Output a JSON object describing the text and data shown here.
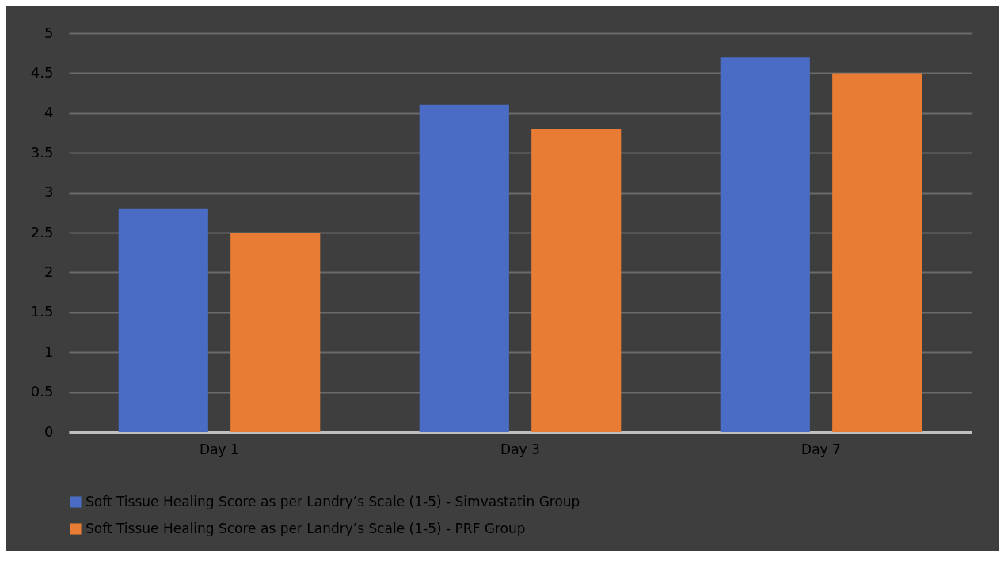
{
  "chart_data": {
    "type": "bar",
    "categories": [
      "Day 1",
      "Day 3",
      "Day 7"
    ],
    "series": [
      {
        "name": "Soft Tissue Healing Score as per Landry’s Scale (1-5) - Simvastatin Group",
        "color": "#4a6cc4",
        "values": [
          2.8,
          4.1,
          4.7
        ]
      },
      {
        "name": "Soft Tissue Healing Score as per Landry’s Scale (1-5) - PRF Group",
        "color": "#e87c34",
        "values": [
          2.5,
          3.8,
          4.5
        ]
      }
    ],
    "ylim": [
      0,
      5
    ],
    "yticks": [
      0,
      0.5,
      1,
      1.5,
      2,
      2.5,
      3,
      3.5,
      4,
      4.5,
      5
    ],
    "grid": "y",
    "legend": "bottom"
  }
}
